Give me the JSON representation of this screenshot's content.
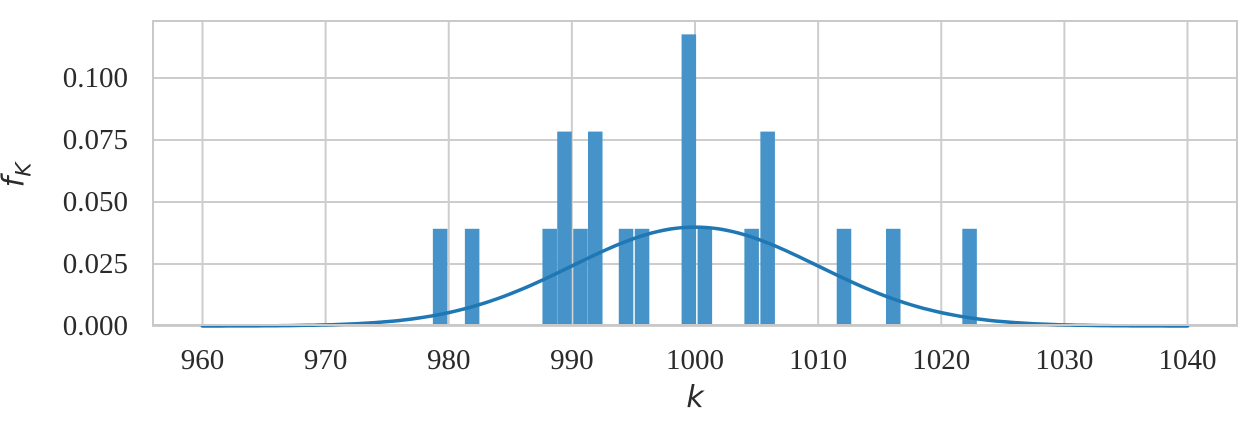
{
  "chart_data": {
    "type": "bar",
    "subtype": "histogram-with-density-curve",
    "title": "",
    "xlabel": "k",
    "ylabel": "f_K",
    "ylabel_main": "f",
    "ylabel_sub": "K",
    "xlim": [
      955.9,
      1044.1
    ],
    "ylim": [
      0,
      0.1234
    ],
    "grid": true,
    "legend": "none",
    "x_ticks": [
      {
        "value": 960,
        "label": "960"
      },
      {
        "value": 970,
        "label": "970"
      },
      {
        "value": 980,
        "label": "980"
      },
      {
        "value": 990,
        "label": "990"
      },
      {
        "value": 1000,
        "label": "1000"
      },
      {
        "value": 1010,
        "label": "1010"
      },
      {
        "value": 1020,
        "label": "1020"
      },
      {
        "value": 1030,
        "label": "1030"
      },
      {
        "value": 1040,
        "label": "1040"
      }
    ],
    "y_ticks": [
      {
        "value": 0.0,
        "label": "0.000"
      },
      {
        "value": 0.025,
        "label": "0.025"
      },
      {
        "value": 0.05,
        "label": "0.050"
      },
      {
        "value": 0.075,
        "label": "0.075"
      },
      {
        "value": 0.1,
        "label": "0.100"
      }
    ],
    "histogram": {
      "n_samples": 20,
      "bin_width": 1.26,
      "bar_draw_width_units": 1.18,
      "bars": [
        {
          "k": 979.3,
          "count": 1,
          "density": 0.0392
        },
        {
          "k": 981.9,
          "count": 1,
          "density": 0.0392
        },
        {
          "k": 988.2,
          "count": 1,
          "density": 0.0392
        },
        {
          "k": 989.4,
          "count": 2,
          "density": 0.0784
        },
        {
          "k": 990.7,
          "count": 1,
          "density": 0.0392
        },
        {
          "k": 991.9,
          "count": 2,
          "density": 0.0784
        },
        {
          "k": 994.4,
          "count": 1,
          "density": 0.0392
        },
        {
          "k": 995.7,
          "count": 1,
          "density": 0.0392
        },
        {
          "k": 999.5,
          "count": 3,
          "density": 0.1176
        },
        {
          "k": 1000.8,
          "count": 1,
          "density": 0.0392
        },
        {
          "k": 1004.6,
          "count": 1,
          "density": 0.0392
        },
        {
          "k": 1005.9,
          "count": 2,
          "density": 0.0784
        },
        {
          "k": 1012.1,
          "count": 1,
          "density": 0.0392
        },
        {
          "k": 1016.1,
          "count": 1,
          "density": 0.0392
        },
        {
          "k": 1022.3,
          "count": 1,
          "density": 0.0392
        }
      ]
    },
    "curve": {
      "name": "normal-pdf",
      "mean": 1000,
      "sd": 10,
      "peak_density": 0.0399,
      "x_start": 960,
      "x_end": 1040
    },
    "colors": {
      "bar": "#4593c8",
      "curve": "#1f77b4",
      "grid": "#cdcdcd",
      "spine": "#c9c9c9",
      "text": "#2b2b2b",
      "background": "#ffffff"
    }
  }
}
